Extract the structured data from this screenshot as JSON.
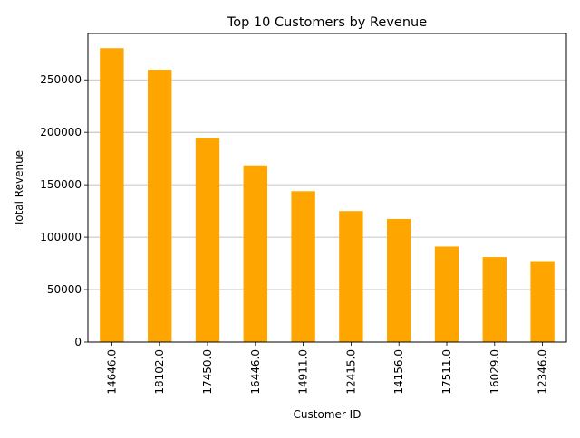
{
  "chart_data": {
    "type": "bar",
    "title": "Top 10 Customers by Revenue",
    "xlabel": "Customer ID",
    "ylabel": "Total Revenue",
    "categories": [
      "14646.0",
      "18102.0",
      "17450.0",
      "16446.0",
      "14911.0",
      "12415.0",
      "14156.0",
      "17511.0",
      "16029.0",
      "12346.0"
    ],
    "values": [
      280206,
      259657,
      194551,
      168472,
      143825,
      124915,
      117379,
      91062,
      81025,
      77184
    ],
    "ylim": [
      0,
      294216
    ],
    "yticks": [
      "0",
      "50000",
      "100000",
      "150000",
      "200000",
      "250000"
    ],
    "ytick_values": [
      0,
      50000,
      100000,
      150000,
      200000,
      250000
    ],
    "grid": "y-axis",
    "bar_color": "#ffa500"
  }
}
